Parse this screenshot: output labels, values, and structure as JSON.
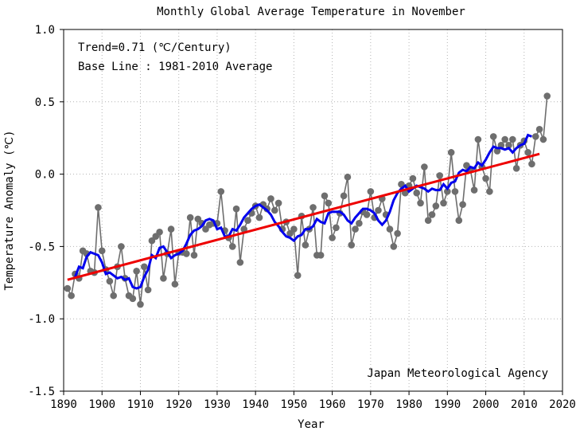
{
  "chart_data": {
    "type": "line",
    "title": "Monthly Global Average Temperature in November",
    "xlabel": "Year",
    "ylabel": "Temperature Anomaly (℃)",
    "annotations": [
      "Trend=0.71 (℃/Century)",
      "Base Line : 1981-2010 Average"
    ],
    "source": "Japan Meteorological Agency",
    "xlim": [
      1890,
      2020
    ],
    "ylim": [
      -1.5,
      1.0
    ],
    "xticks": [
      1890,
      1900,
      1910,
      1920,
      1930,
      1940,
      1950,
      1960,
      1970,
      1980,
      1990,
      2000,
      2010,
      2020
    ],
    "yticks": [
      -1.5,
      -1.0,
      -0.5,
      0.0,
      0.5,
      1.0
    ],
    "ytick_labels": [
      "-1.5",
      "-1.0",
      "-0.5",
      "0.0",
      "0.5",
      "1.0"
    ],
    "grid": true,
    "colors": {
      "anomaly": "#6e6e6e",
      "running_mean": "#0000ee",
      "trend": "#ee0000"
    },
    "series": [
      {
        "x_start": 1891,
        "values": [
          -0.79,
          -0.84,
          -0.69,
          -0.72,
          -0.53,
          -0.55,
          -0.67,
          -0.68,
          -0.23,
          -0.53,
          -0.66,
          -0.74,
          -0.84,
          -0.64,
          -0.5,
          -0.72,
          -0.84,
          -0.86,
          -0.67,
          -0.9,
          -0.64,
          -0.8,
          -0.46,
          -0.43,
          -0.4,
          -0.72,
          -0.55,
          -0.38,
          -0.76,
          -0.54,
          -0.54,
          -0.55,
          -0.3,
          -0.56,
          -0.31,
          -0.34,
          -0.38,
          -0.35,
          -0.34,
          -0.34,
          -0.12,
          -0.39,
          -0.44,
          -0.5,
          -0.24,
          -0.61,
          -0.38,
          -0.32,
          -0.27,
          -0.22,
          -0.3,
          -0.21,
          -0.24,
          -0.17,
          -0.25,
          -0.2,
          -0.38,
          -0.33,
          -0.41,
          -0.38,
          -0.7,
          -0.29,
          -0.49,
          -0.38,
          -0.23,
          -0.56,
          -0.56,
          -0.15,
          -0.2,
          -0.44,
          -0.37,
          -0.27,
          -0.15,
          -0.02,
          -0.49,
          -0.38,
          -0.34,
          -0.26,
          -0.28,
          -0.12,
          -0.3,
          -0.25,
          -0.17,
          -0.28,
          -0.38,
          -0.5,
          -0.41,
          -0.07,
          -0.13,
          -0.08,
          -0.03,
          -0.13,
          -0.2,
          0.05,
          -0.32,
          -0.28,
          -0.22,
          -0.01,
          -0.2,
          -0.12,
          0.15,
          -0.12,
          -0.32,
          -0.21,
          0.06,
          0.03,
          -0.11,
          0.24,
          0.05,
          -0.03,
          -0.12,
          0.26,
          0.16,
          0.2,
          0.24,
          0.2,
          0.24,
          0.04,
          0.2,
          0.23,
          0.15,
          0.07,
          0.26,
          0.31,
          0.24,
          0.54
        ]
      },
      {
        "x_start": 1893,
        "values": [
          -0.71,
          -0.64,
          -0.65,
          -0.57,
          -0.54,
          -0.55,
          -0.56,
          -0.61,
          -0.69,
          -0.68,
          -0.7,
          -0.72,
          -0.71,
          -0.73,
          -0.72,
          -0.78,
          -0.79,
          -0.78,
          -0.71,
          -0.66,
          -0.56,
          -0.58,
          -0.51,
          -0.5,
          -0.54,
          -0.58,
          -0.56,
          -0.55,
          -0.53,
          -0.48,
          -0.42,
          -0.39,
          -0.38,
          -0.36,
          -0.32,
          -0.31,
          -0.32,
          -0.38,
          -0.37,
          -0.43,
          -0.43,
          -0.38,
          -0.39,
          -0.35,
          -0.3,
          -0.27,
          -0.24,
          -0.22,
          -0.21,
          -0.23,
          -0.25,
          -0.28,
          -0.33,
          -0.36,
          -0.4,
          -0.43,
          -0.44,
          -0.46,
          -0.43,
          -0.42,
          -0.38,
          -0.38,
          -0.36,
          -0.31,
          -0.33,
          -0.34,
          -0.27,
          -0.26,
          -0.26,
          -0.26,
          -0.28,
          -0.32,
          -0.34,
          -0.3,
          -0.27,
          -0.24,
          -0.24,
          -0.25,
          -0.27,
          -0.32,
          -0.35,
          -0.32,
          -0.26,
          -0.18,
          -0.13,
          -0.1,
          -0.08,
          -0.12,
          -0.1,
          -0.08,
          -0.09,
          -0.1,
          -0.12,
          -0.1,
          -0.11,
          -0.11,
          -0.07,
          -0.1,
          -0.06,
          -0.05,
          0.01,
          0.03,
          0.02,
          0.05,
          0.04,
          0.08,
          0.06,
          0.1,
          0.15,
          0.19,
          0.18,
          0.18,
          0.17,
          0.18,
          0.15,
          0.18,
          0.2,
          0.21,
          0.27,
          0.26
        ]
      }
    ],
    "trend_line": {
      "x": [
        1891,
        2014
      ],
      "y": [
        -0.73,
        0.14
      ]
    }
  }
}
